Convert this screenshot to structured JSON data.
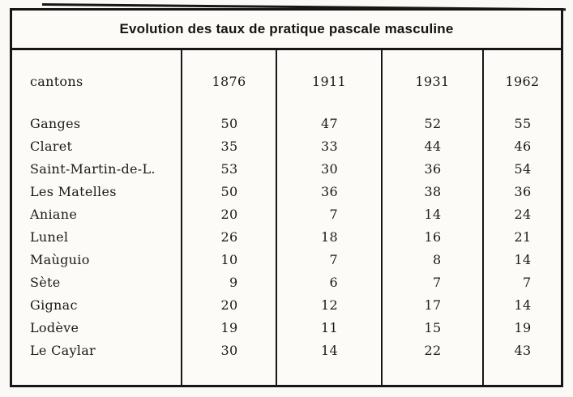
{
  "colors": {
    "ink": "#1a1a1a",
    "paper": "#faf9f6"
  },
  "table": {
    "title": "Evolution des taux de pratique pascale masculine",
    "header": {
      "cantons": "cantons",
      "years": [
        "1876",
        "1911",
        "1931",
        "1962"
      ]
    },
    "rows": [
      {
        "canton": "Ganges",
        "values": [
          "50",
          "47",
          "52",
          "55"
        ]
      },
      {
        "canton": "Claret",
        "values": [
          "35",
          "33",
          "44",
          "46"
        ]
      },
      {
        "canton": "Saint-Martin-de-L.",
        "values": [
          "53",
          "30",
          "36",
          "54"
        ]
      },
      {
        "canton": "Les Matelles",
        "values": [
          "50",
          "36",
          "38",
          "36"
        ]
      },
      {
        "canton": "Aniane",
        "values": [
          "20",
          "7",
          "14",
          "24"
        ]
      },
      {
        "canton": "Lunel",
        "values": [
          "26",
          "18",
          "16",
          "21"
        ]
      },
      {
        "canton": "Maùguio",
        "values": [
          "10",
          "7",
          "8",
          "14"
        ]
      },
      {
        "canton": "Sète",
        "values": [
          "9",
          "6",
          "7",
          "7"
        ]
      },
      {
        "canton": "Gignac",
        "values": [
          "20",
          "12",
          "17",
          "14"
        ]
      },
      {
        "canton": "Lodève",
        "values": [
          "19",
          "11",
          "15",
          "19"
        ]
      },
      {
        "canton": "Le Caylar",
        "values": [
          "30",
          "14",
          "22",
          "43"
        ]
      }
    ]
  }
}
